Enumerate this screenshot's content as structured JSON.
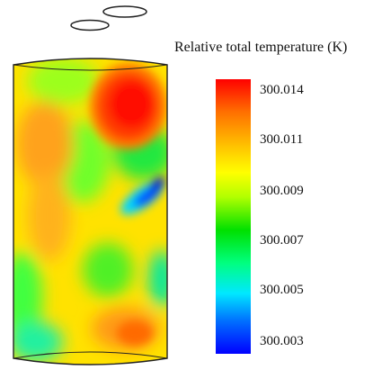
{
  "legend": {
    "title": "Relative total temperature (K)",
    "ticks": [
      "300.014",
      "300.011",
      "300.009",
      "300.007",
      "300.005",
      "300.003"
    ],
    "range": [
      300.003,
      300.014
    ]
  },
  "colormap": [
    "#0000ff",
    "#00a6ff",
    "#00ffff",
    "#00ff66",
    "#00e600",
    "#9cff00",
    "#ffff00",
    "#ffcc00",
    "#ff9900",
    "#ff4400",
    "#ff0000"
  ],
  "icons": {
    "top_ports": "ellipse-port-icon"
  }
}
